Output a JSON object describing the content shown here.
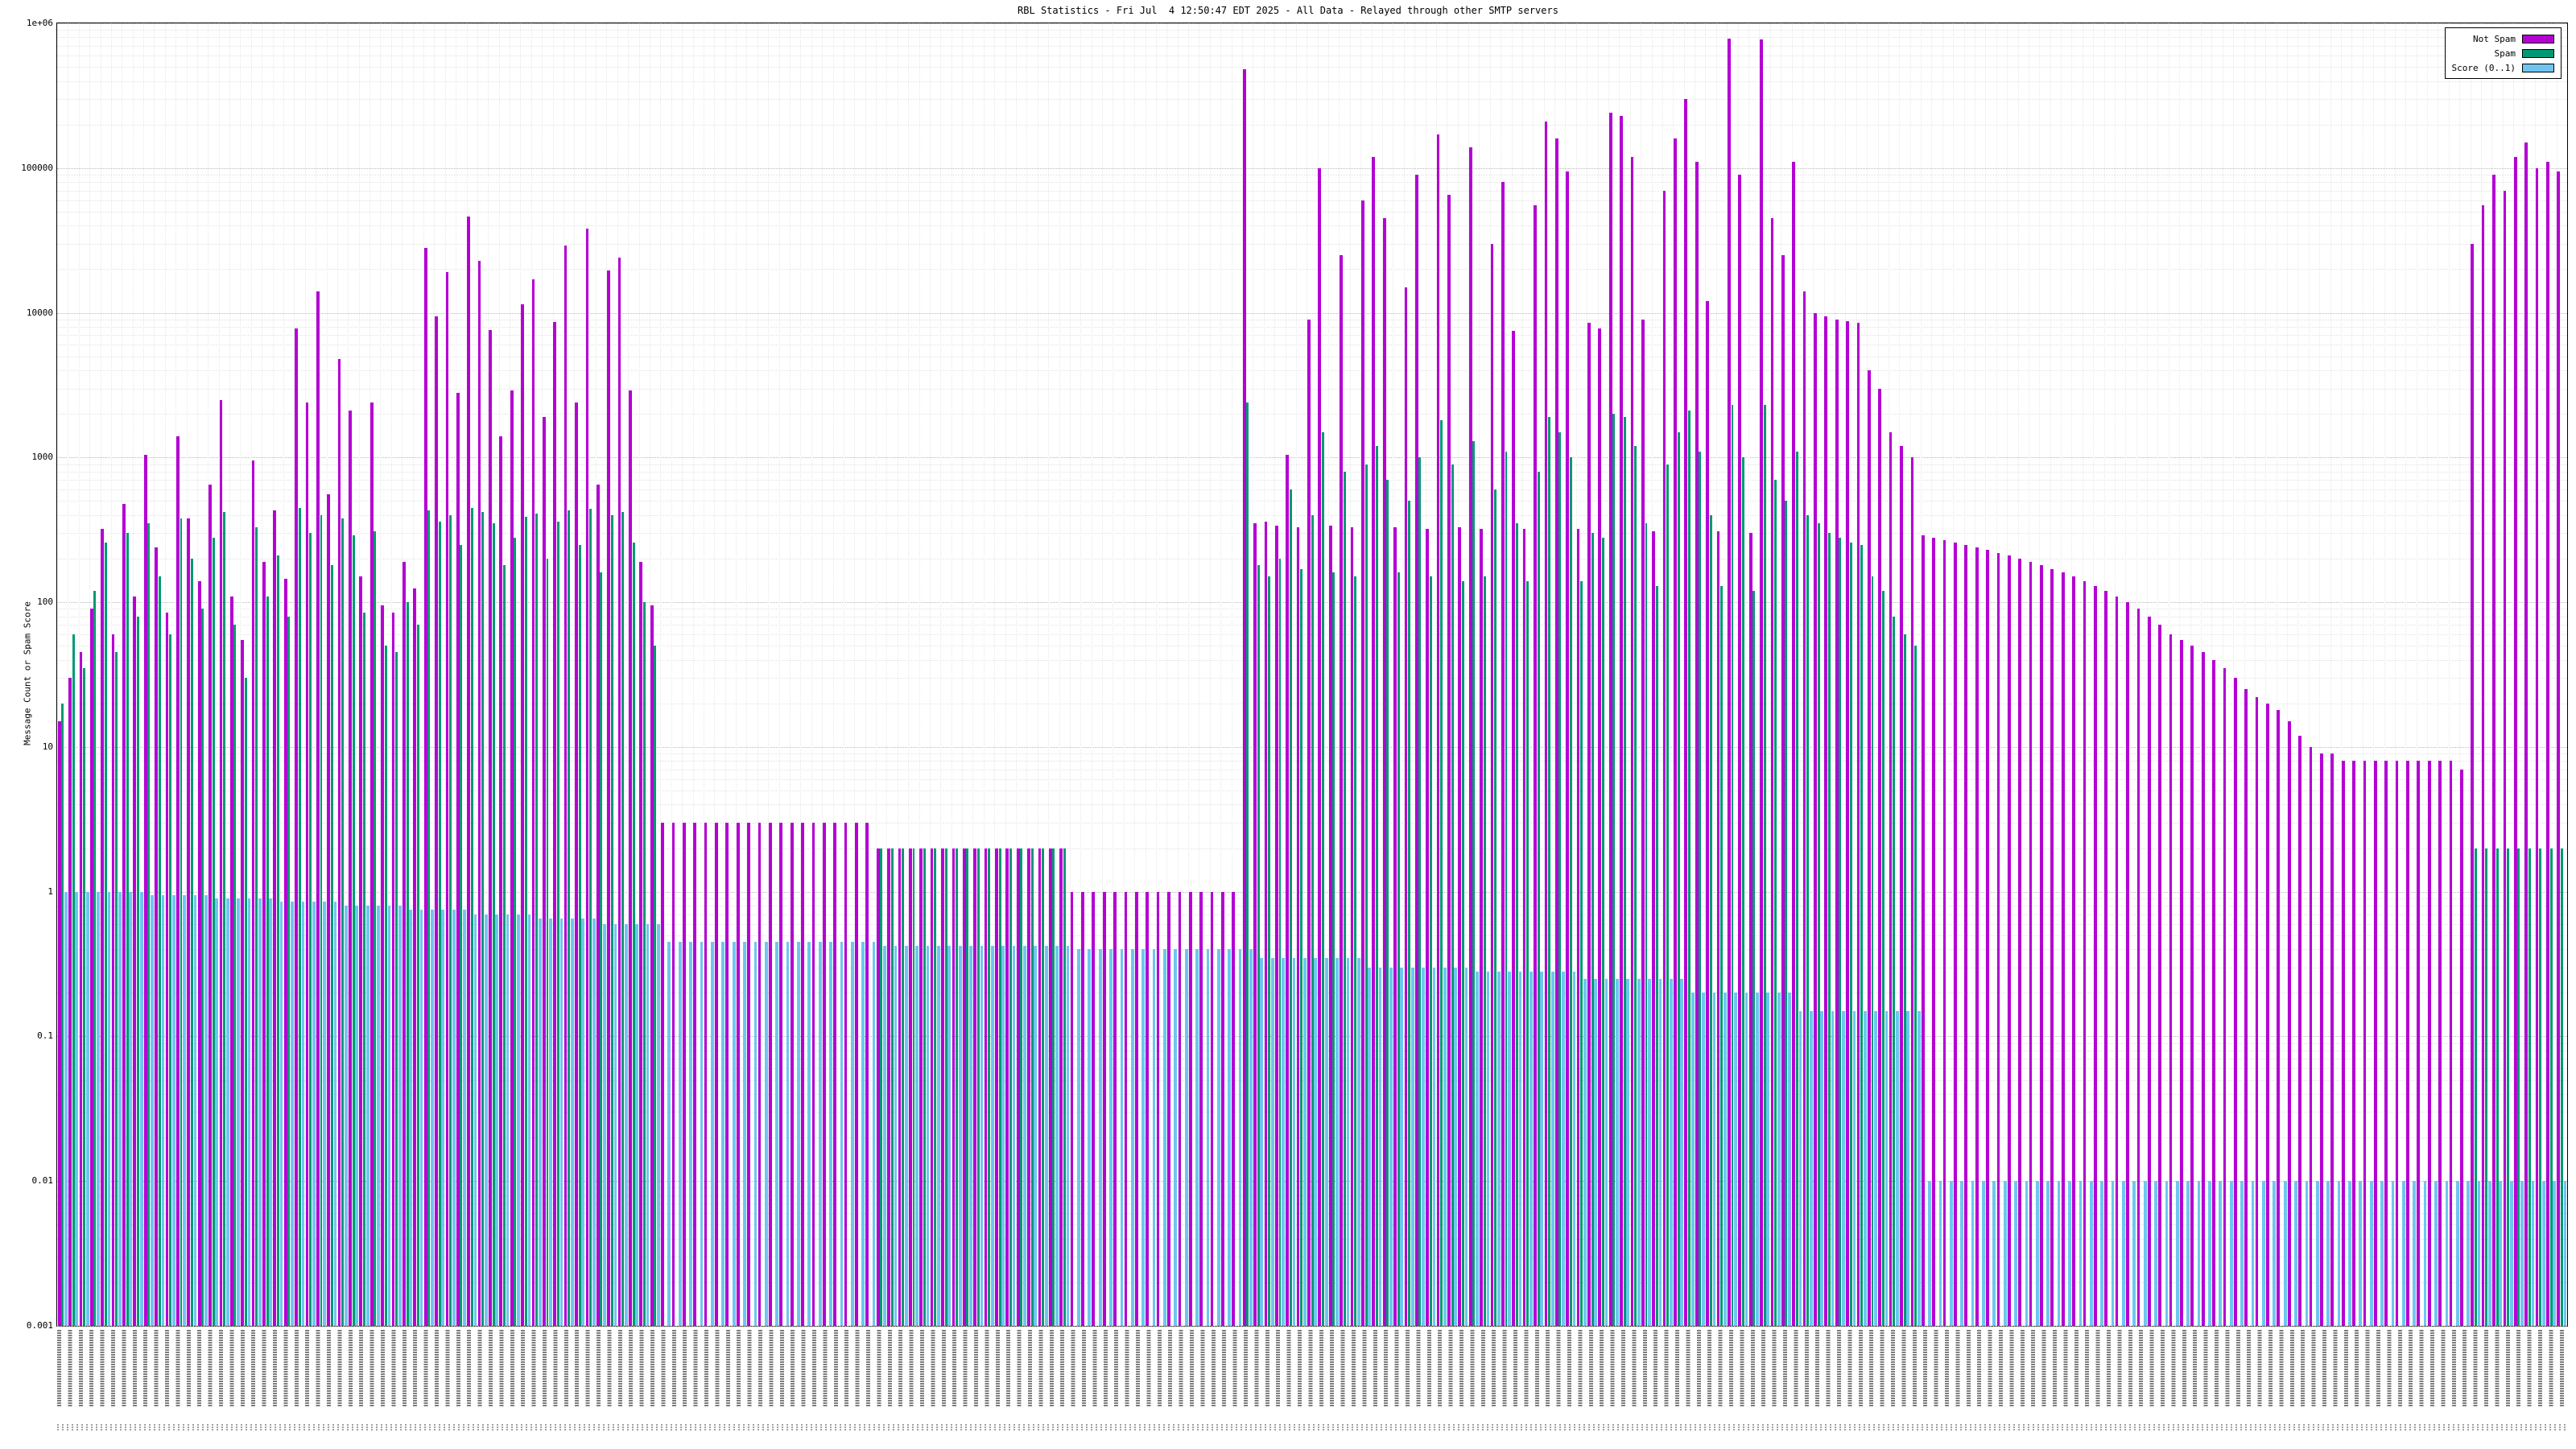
{
  "chart_data": {
    "type": "bar",
    "title": "RBL Statistics - Fri Jul  4 12:50:47 EDT 2025 - All Data - Relayed through other SMTP servers",
    "xlabel": "",
    "ylabel": "Message Count or Spam Score",
    "y_scale": "log",
    "ylim": [
      0.001,
      1000000
    ],
    "yticks": [
      "1e+06",
      "100000",
      "10000",
      "1000",
      "100",
      "10",
      "1",
      "0.1",
      "0.01",
      "0.001"
    ],
    "grid": true,
    "legend_position": "top-right",
    "xtick_labels_legible": false,
    "legend": [
      {
        "label": "Not Spam",
        "color": "#b400d3"
      },
      {
        "label": "Spam",
        "color": "#009973"
      },
      {
        "label": "Score (0..1)",
        "color": "#6ec6f0"
      }
    ],
    "series": [
      {
        "name": "Not Spam",
        "values": [
          15,
          30,
          45,
          90,
          320,
          60,
          480,
          110,
          1050,
          240,
          85,
          1400,
          380,
          140,
          650,
          2500,
          110,
          55,
          950,
          190,
          430,
          145,
          7800,
          2400,
          14000,
          560,
          4800,
          2100,
          150,
          2400,
          95,
          85,
          190,
          125,
          28000,
          9500,
          19000,
          2800,
          46000,
          23000,
          7600,
          1400,
          2900,
          11500,
          17000,
          1900,
          8600,
          29000,
          2400,
          38000,
          650,
          19500,
          24000,
          2900,
          190,
          95,
          3,
          3,
          3,
          3,
          3,
          3,
          3,
          3,
          3,
          3,
          3,
          3,
          3,
          3,
          3,
          3,
          3,
          3,
          3,
          3,
          2,
          2,
          2,
          2,
          2,
          2,
          2,
          2,
          2,
          2,
          2,
          2,
          2,
          2,
          2,
          2,
          2,
          2,
          1,
          1,
          1,
          1,
          1,
          1,
          1,
          1,
          1,
          1,
          1,
          1,
          1,
          1,
          1,
          1,
          480000,
          350,
          360,
          340,
          1050,
          330,
          9000,
          100000,
          340,
          25000,
          330,
          60000,
          120000,
          45000,
          330,
          15000,
          90000,
          320,
          170000,
          65000,
          330,
          140000,
          320,
          30000,
          80000,
          7500,
          320,
          55000,
          210000,
          160000,
          95000,
          320,
          8500,
          7800,
          240000,
          230000,
          120000,
          9000,
          310,
          70000,
          160000,
          300000,
          110000,
          12000,
          310,
          780000,
          90000,
          300,
          770000,
          45000,
          25000,
          110000,
          14000,
          10000,
          9500,
          9000,
          8800,
          8500,
          4000,
          3000,
          1500,
          1200,
          1000,
          290,
          280,
          270,
          260,
          250,
          240,
          230,
          220,
          210,
          200,
          190,
          180,
          170,
          160,
          150,
          140,
          130,
          120,
          110,
          100,
          90,
          80,
          70,
          60,
          55,
          50,
          45,
          40,
          35,
          30,
          25,
          22,
          20,
          18,
          15,
          12,
          10,
          9,
          9,
          8,
          8,
          8,
          8,
          8,
          8,
          8,
          8,
          8,
          8,
          8,
          7,
          30000,
          55000,
          90000,
          70000,
          120000,
          150000,
          100000,
          110000,
          95000
        ]
      },
      {
        "name": "Spam",
        "values": [
          20,
          60,
          35,
          120,
          260,
          45,
          300,
          80,
          350,
          150,
          60,
          380,
          200,
          90,
          280,
          420,
          70,
          30,
          330,
          110,
          210,
          80,
          450,
          300,
          400,
          180,
          380,
          290,
          85,
          310,
          50,
          45,
          100,
          70,
          430,
          360,
          400,
          250,
          450,
          420,
          350,
          180,
          280,
          390,
          410,
          200,
          360,
          430,
          250,
          440,
          160,
          400,
          420,
          260,
          100,
          50,
          0,
          0,
          0,
          0,
          0,
          0,
          0,
          0,
          0,
          0,
          0,
          0,
          0,
          0,
          0,
          0,
          0,
          0,
          0,
          0,
          2,
          2,
          2,
          2,
          2,
          2,
          2,
          2,
          2,
          2,
          2,
          2,
          2,
          2,
          2,
          2,
          2,
          2,
          0,
          0,
          0,
          0,
          0,
          0,
          0,
          0,
          0,
          0,
          0,
          0,
          0,
          0,
          0,
          0,
          2400,
          180,
          150,
          200,
          600,
          170,
          400,
          1500,
          160,
          800,
          150,
          900,
          1200,
          700,
          160,
          500,
          1000,
          150,
          1800,
          900,
          140,
          1300,
          150,
          600,
          1100,
          350,
          140,
          800,
          1900,
          1500,
          1000,
          140,
          300,
          280,
          2000,
          1900,
          1200,
          350,
          130,
          900,
          1500,
          2100,
          1100,
          400,
          130,
          2300,
          1000,
          120,
          2300,
          700,
          500,
          1100,
          400,
          350,
          300,
          280,
          260,
          250,
          150,
          120,
          80,
          60,
          50,
          0,
          0,
          0,
          0,
          0,
          0,
          0,
          0,
          0,
          0,
          0,
          0,
          0,
          0,
          0,
          0,
          0,
          0,
          0,
          0,
          0,
          0,
          0,
          0,
          0,
          0,
          0,
          0,
          0,
          0,
          0,
          0,
          0,
          0,
          0,
          0,
          0,
          0,
          0,
          0,
          0,
          0,
          0,
          0,
          0,
          0,
          0,
          0,
          0,
          0,
          0,
          2,
          2,
          2,
          2,
          2,
          2,
          2,
          2,
          2
        ]
      },
      {
        "name": "Score (0..1)",
        "values": [
          1,
          1,
          1,
          1,
          1,
          1,
          1,
          1,
          0.95,
          0.95,
          0.95,
          0.95,
          0.95,
          0.95,
          0.9,
          0.9,
          0.9,
          0.9,
          0.9,
          0.9,
          0.85,
          0.85,
          0.85,
          0.85,
          0.85,
          0.85,
          0.8,
          0.8,
          0.8,
          0.8,
          0.8,
          0.8,
          0.75,
          0.75,
          0.75,
          0.75,
          0.75,
          0.75,
          0.7,
          0.7,
          0.7,
          0.7,
          0.7,
          0.7,
          0.65,
          0.65,
          0.65,
          0.65,
          0.65,
          0.65,
          0.6,
          0.6,
          0.6,
          0.6,
          0.6,
          0.6,
          0.45,
          0.45,
          0.45,
          0.45,
          0.45,
          0.45,
          0.45,
          0.45,
          0.45,
          0.45,
          0.45,
          0.45,
          0.45,
          0.45,
          0.45,
          0.45,
          0.45,
          0.45,
          0.45,
          0.45,
          0.42,
          0.42,
          0.42,
          0.42,
          0.42,
          0.42,
          0.42,
          0.42,
          0.42,
          0.42,
          0.42,
          0.42,
          0.42,
          0.42,
          0.42,
          0.42,
          0.42,
          0.42,
          0.4,
          0.4,
          0.4,
          0.4,
          0.4,
          0.4,
          0.4,
          0.4,
          0.4,
          0.4,
          0.4,
          0.4,
          0.4,
          0.4,
          0.4,
          0.4,
          0.4,
          0.35,
          0.35,
          0.35,
          0.35,
          0.35,
          0.35,
          0.35,
          0.35,
          0.35,
          0.35,
          0.3,
          0.3,
          0.3,
          0.3,
          0.3,
          0.3,
          0.3,
          0.3,
          0.3,
          0.3,
          0.28,
          0.28,
          0.28,
          0.28,
          0.28,
          0.28,
          0.28,
          0.28,
          0.28,
          0.28,
          0.25,
          0.25,
          0.25,
          0.25,
          0.25,
          0.25,
          0.25,
          0.25,
          0.25,
          0.25,
          0.2,
          0.2,
          0.2,
          0.2,
          0.2,
          0.2,
          0.2,
          0.2,
          0.2,
          0.2,
          0.15,
          0.15,
          0.15,
          0.15,
          0.15,
          0.15,
          0.15,
          0.15,
          0.15,
          0.15,
          0.15,
          0.15,
          0.01,
          0.01,
          0.01,
          0.01,
          0.01,
          0.01,
          0.01,
          0.01,
          0.01,
          0.01,
          0.01,
          0.01,
          0.01,
          0.01,
          0.01,
          0.01,
          0.01,
          0.01,
          0.01,
          0.01,
          0.01,
          0.01,
          0.01,
          0.01,
          0.01,
          0.01,
          0.01,
          0.01,
          0.01,
          0.01,
          0.01,
          0.01,
          0.01,
          0.01,
          0.01,
          0.01,
          0.01,
          0.01,
          0.01,
          0.01,
          0.01,
          0.01,
          0.01,
          0.01,
          0.01,
          0.01,
          0.01,
          0.01,
          0.01,
          0.01,
          0.01,
          0.01,
          0.01,
          0.01,
          0.01,
          0.01,
          0.01,
          0.01,
          0.01,
          0.01
        ]
      }
    ]
  }
}
